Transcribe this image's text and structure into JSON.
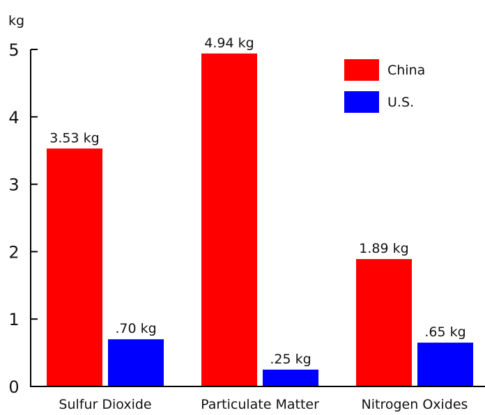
{
  "chart_data": {
    "type": "bar",
    "title": "",
    "xlabel": "",
    "ylabel": "kg",
    "ylim": [
      0,
      5
    ],
    "yticks": [
      0,
      1,
      2,
      3,
      4,
      5
    ],
    "grid": false,
    "legend_position": "top-right",
    "categories": [
      "Sulfur Dioxide",
      "Particulate Matter",
      "Nitrogen Oxides"
    ],
    "series": [
      {
        "name": "China",
        "color": "#ff0000",
        "values": [
          3.53,
          4.94,
          1.89
        ],
        "labels": [
          "3.53 kg",
          "4.94 kg",
          "1.89 kg"
        ]
      },
      {
        "name": "U.S.",
        "color": "#0000ff",
        "values": [
          0.7,
          0.25,
          0.65
        ],
        "labels": [
          ".70 kg",
          ".25 kg",
          ".65 kg"
        ]
      }
    ]
  }
}
